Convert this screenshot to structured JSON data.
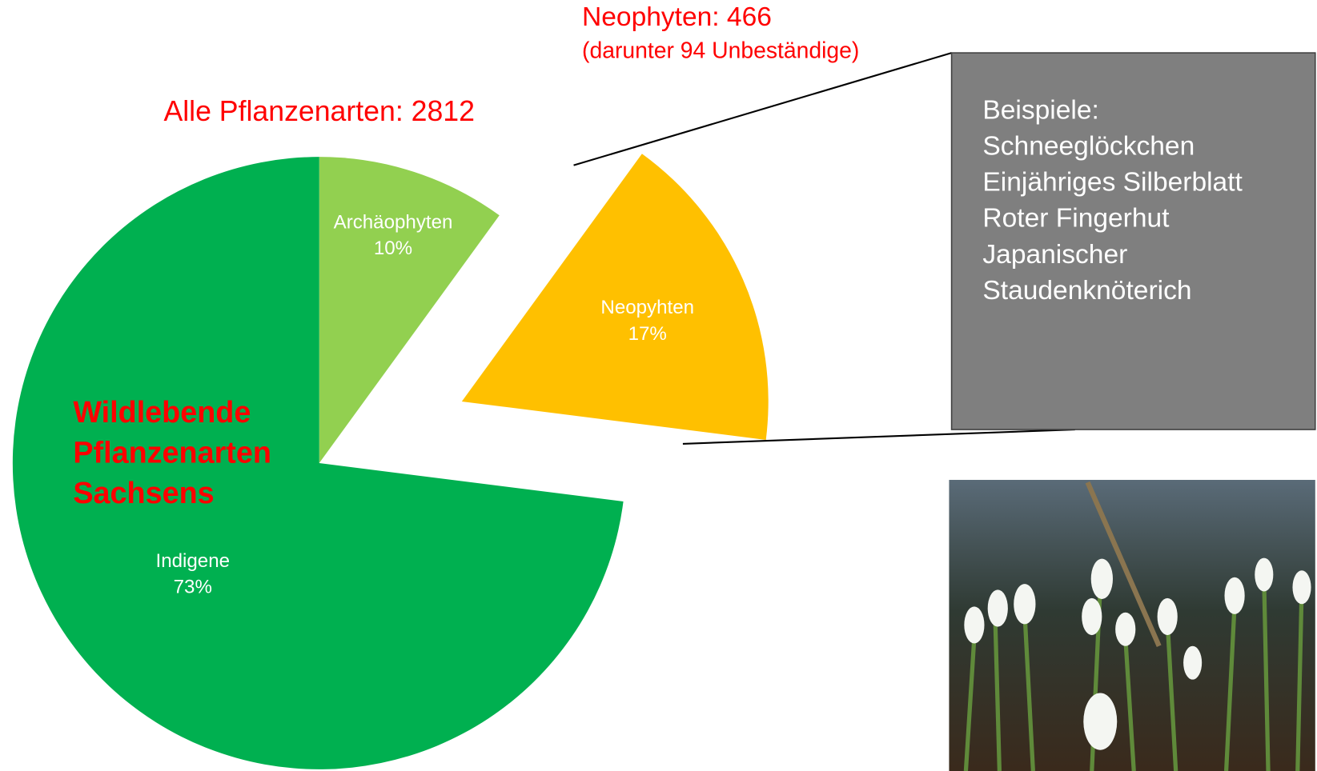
{
  "chart_data": {
    "type": "pie",
    "title": "Alle Pflanzenarten: 2812",
    "center_label": [
      "Wildlebende",
      "Pflanzenarten",
      "Sachsens"
    ],
    "categories": [
      "Archäophyten",
      "Neopyhten",
      "Indigene"
    ],
    "values": [
      10,
      17,
      73
    ],
    "value_labels": [
      "10%",
      "17%",
      "73%"
    ],
    "colors": [
      "#92d050",
      "#ffc000",
      "#00b050"
    ],
    "exploded": [
      false,
      true,
      false
    ],
    "annotation": {
      "title": "Neophyten: 466",
      "subtitle": "(darunter 94 Unbeständige)"
    },
    "examples": [
      "Beispiele:",
      "Schneeglöckchen",
      "Einjähriges Silberblatt",
      "Roter Fingerhut",
      "Japanischer",
      "Staudenknöterich"
    ]
  }
}
